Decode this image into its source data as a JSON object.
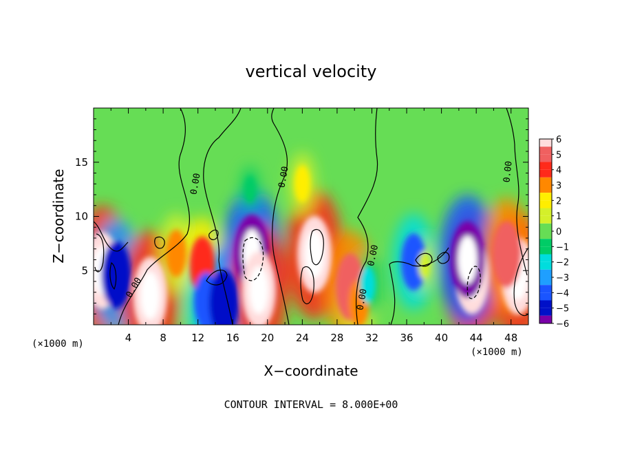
{
  "chart_data": {
    "type": "heatmap",
    "title": "vertical velocity",
    "xlabel": "X−coordinate",
    "ylabel": "Z−coordinate",
    "x_unit": "(×1000 m)",
    "z_unit": "(×1000 m)",
    "xlim": [
      0,
      50
    ],
    "ylim": [
      0,
      20
    ],
    "x_ticks": [
      "4",
      "8",
      "12",
      "16",
      "20",
      "24",
      "28",
      "32",
      "36",
      "40",
      "44",
      "48"
    ],
    "y_ticks": [
      "5",
      "10",
      "15"
    ],
    "colorbar_ticks": [
      "6",
      "5",
      "4",
      "3",
      "2",
      "1",
      "0",
      "−1",
      "−2",
      "−3",
      "−4",
      "−5",
      "−6"
    ],
    "colorbar_range": [
      -6,
      6
    ],
    "contour_label": "0.00",
    "footer": "CONTOUR INTERVAL = 8.000E+00",
    "features": [
      {
        "x": 1,
        "z": 5,
        "w": 6
      },
      {
        "x": 2.6,
        "z": 4.6,
        "w": -5
      },
      {
        "x": 6.5,
        "z": 2.7,
        "w": 6
      },
      {
        "x": 9.5,
        "z": 6.6,
        "w": 3
      },
      {
        "x": 12.5,
        "z": 5.5,
        "w": 4
      },
      {
        "x": 13,
        "z": 2.2,
        "w": -4
      },
      {
        "x": 15,
        "z": 2,
        "w": -5
      },
      {
        "x": 18.2,
        "z": 6.6,
        "w": -6
      },
      {
        "x": 19,
        "z": 3.2,
        "w": 6
      },
      {
        "x": 25.4,
        "z": 6.5,
        "w": 6
      },
      {
        "x": 29.5,
        "z": 3.5,
        "w": 5
      },
      {
        "x": 30.5,
        "z": 2,
        "w": 3
      },
      {
        "x": 31.5,
        "z": 3.7,
        "w": -2
      },
      {
        "x": 36.8,
        "z": 5.8,
        "w": -4
      },
      {
        "x": 38,
        "z": 5.5,
        "w": 1
      },
      {
        "x": 43.5,
        "z": 4.5,
        "w": 6
      },
      {
        "x": 43,
        "z": 6,
        "w": -6
      },
      {
        "x": 48.8,
        "z": 4.5,
        "w": 6
      },
      {
        "x": 47.5,
        "z": 6.5,
        "w": 5
      },
      {
        "x": 24,
        "z": 13,
        "w": 2
      },
      {
        "x": 18,
        "z": 12.5,
        "w": -1
      }
    ]
  }
}
